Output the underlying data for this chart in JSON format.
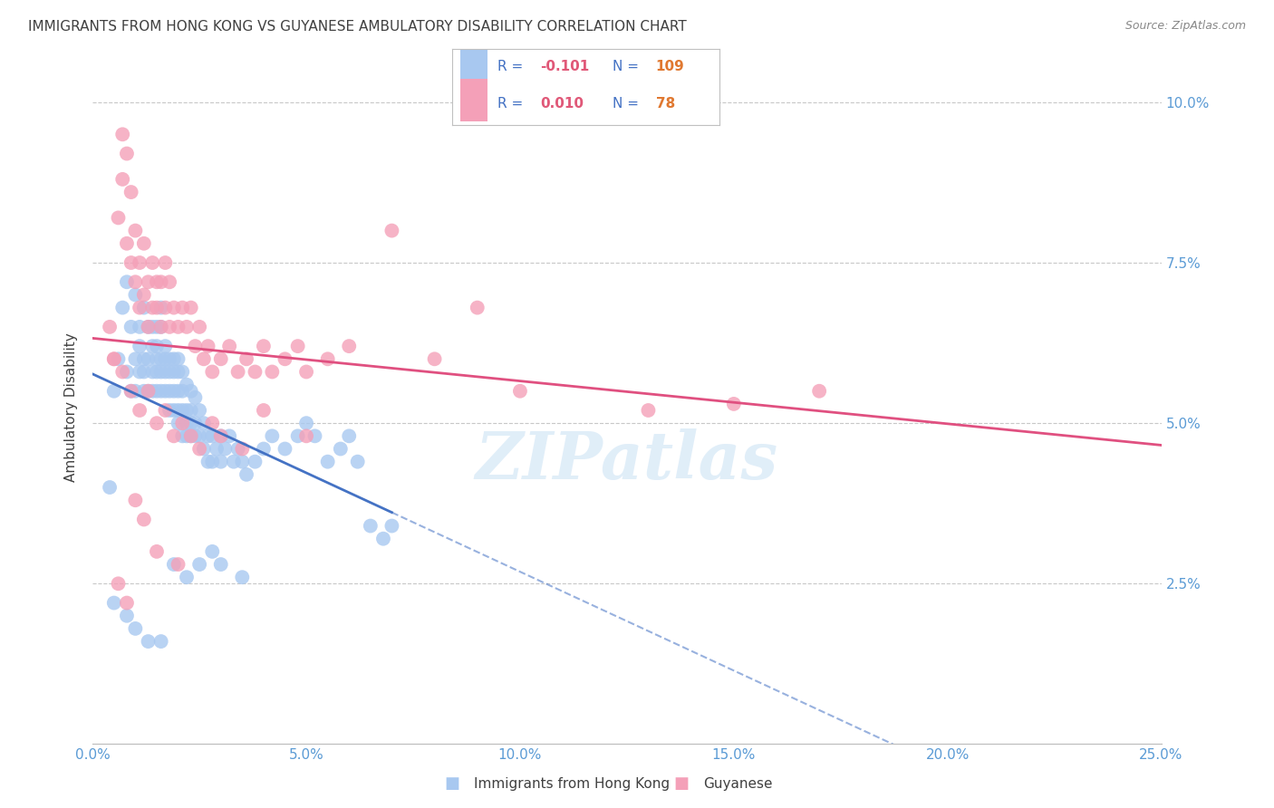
{
  "title": "IMMIGRANTS FROM HONG KONG VS GUYANESE AMBULATORY DISABILITY CORRELATION CHART",
  "source": "Source: ZipAtlas.com",
  "ylabel": "Ambulatory Disability",
  "legend_label1": "Immigrants from Hong Kong",
  "legend_label2": "Guyanese",
  "R1": "-0.101",
  "N1": "109",
  "R2": "0.010",
  "N2": "78",
  "color1": "#a8c8f0",
  "color2": "#f4a0b8",
  "line1_color": "#4472c4",
  "line2_color": "#e05080",
  "background": "#ffffff",
  "grid_color": "#c8c8c8",
  "title_color": "#404040",
  "axis_color": "#5b9bd5",
  "watermark": "ZIPatlas",
  "xlim": [
    0.0,
    0.25
  ],
  "ylim": [
    0.0,
    0.105
  ],
  "blue_x": [
    0.004,
    0.005,
    0.006,
    0.007,
    0.008,
    0.008,
    0.009,
    0.009,
    0.01,
    0.01,
    0.01,
    0.011,
    0.011,
    0.011,
    0.012,
    0.012,
    0.012,
    0.012,
    0.013,
    0.013,
    0.013,
    0.014,
    0.014,
    0.014,
    0.014,
    0.015,
    0.015,
    0.015,
    0.015,
    0.015,
    0.016,
    0.016,
    0.016,
    0.016,
    0.016,
    0.017,
    0.017,
    0.017,
    0.017,
    0.018,
    0.018,
    0.018,
    0.018,
    0.019,
    0.019,
    0.019,
    0.019,
    0.02,
    0.02,
    0.02,
    0.02,
    0.02,
    0.021,
    0.021,
    0.021,
    0.021,
    0.022,
    0.022,
    0.022,
    0.022,
    0.023,
    0.023,
    0.023,
    0.023,
    0.024,
    0.024,
    0.024,
    0.025,
    0.025,
    0.026,
    0.026,
    0.027,
    0.027,
    0.028,
    0.028,
    0.029,
    0.03,
    0.03,
    0.031,
    0.032,
    0.033,
    0.034,
    0.035,
    0.036,
    0.038,
    0.04,
    0.042,
    0.045,
    0.048,
    0.05,
    0.052,
    0.055,
    0.058,
    0.06,
    0.062,
    0.065,
    0.068,
    0.07,
    0.005,
    0.008,
    0.01,
    0.013,
    0.016,
    0.019,
    0.022,
    0.025,
    0.028,
    0.03,
    0.035
  ],
  "blue_y": [
    0.04,
    0.055,
    0.06,
    0.068,
    0.058,
    0.072,
    0.065,
    0.055,
    0.06,
    0.055,
    0.07,
    0.062,
    0.058,
    0.065,
    0.068,
    0.058,
    0.06,
    0.055,
    0.065,
    0.055,
    0.06,
    0.062,
    0.058,
    0.055,
    0.065,
    0.062,
    0.058,
    0.065,
    0.055,
    0.06,
    0.068,
    0.06,
    0.055,
    0.058,
    0.065,
    0.06,
    0.055,
    0.058,
    0.062,
    0.06,
    0.055,
    0.058,
    0.052,
    0.06,
    0.055,
    0.052,
    0.058,
    0.06,
    0.055,
    0.052,
    0.058,
    0.05,
    0.058,
    0.052,
    0.055,
    0.048,
    0.056,
    0.052,
    0.05,
    0.048,
    0.055,
    0.05,
    0.048,
    0.052,
    0.054,
    0.05,
    0.048,
    0.052,
    0.048,
    0.05,
    0.046,
    0.048,
    0.044,
    0.048,
    0.044,
    0.046,
    0.048,
    0.044,
    0.046,
    0.048,
    0.044,
    0.046,
    0.044,
    0.042,
    0.044,
    0.046,
    0.048,
    0.046,
    0.048,
    0.05,
    0.048,
    0.044,
    0.046,
    0.048,
    0.044,
    0.034,
    0.032,
    0.034,
    0.022,
    0.02,
    0.018,
    0.016,
    0.016,
    0.028,
    0.026,
    0.028,
    0.03,
    0.028,
    0.026
  ],
  "pink_x": [
    0.004,
    0.005,
    0.006,
    0.007,
    0.007,
    0.008,
    0.008,
    0.009,
    0.009,
    0.01,
    0.01,
    0.011,
    0.011,
    0.012,
    0.012,
    0.013,
    0.013,
    0.014,
    0.014,
    0.015,
    0.015,
    0.016,
    0.016,
    0.017,
    0.017,
    0.018,
    0.018,
    0.019,
    0.02,
    0.021,
    0.022,
    0.023,
    0.024,
    0.025,
    0.026,
    0.027,
    0.028,
    0.03,
    0.032,
    0.034,
    0.036,
    0.038,
    0.04,
    0.042,
    0.045,
    0.048,
    0.05,
    0.055,
    0.06,
    0.07,
    0.08,
    0.09,
    0.1,
    0.13,
    0.15,
    0.17,
    0.005,
    0.007,
    0.009,
    0.011,
    0.013,
    0.015,
    0.017,
    0.019,
    0.021,
    0.023,
    0.025,
    0.028,
    0.03,
    0.035,
    0.04,
    0.05,
    0.006,
    0.008,
    0.01,
    0.012,
    0.015,
    0.02
  ],
  "pink_y": [
    0.065,
    0.06,
    0.082,
    0.095,
    0.088,
    0.078,
    0.092,
    0.086,
    0.075,
    0.08,
    0.072,
    0.075,
    0.068,
    0.07,
    0.078,
    0.072,
    0.065,
    0.068,
    0.075,
    0.072,
    0.068,
    0.065,
    0.072,
    0.068,
    0.075,
    0.065,
    0.072,
    0.068,
    0.065,
    0.068,
    0.065,
    0.068,
    0.062,
    0.065,
    0.06,
    0.062,
    0.058,
    0.06,
    0.062,
    0.058,
    0.06,
    0.058,
    0.062,
    0.058,
    0.06,
    0.062,
    0.058,
    0.06,
    0.062,
    0.08,
    0.06,
    0.068,
    0.055,
    0.052,
    0.053,
    0.055,
    0.06,
    0.058,
    0.055,
    0.052,
    0.055,
    0.05,
    0.052,
    0.048,
    0.05,
    0.048,
    0.046,
    0.05,
    0.048,
    0.046,
    0.052,
    0.048,
    0.025,
    0.022,
    0.038,
    0.035,
    0.03,
    0.028
  ]
}
